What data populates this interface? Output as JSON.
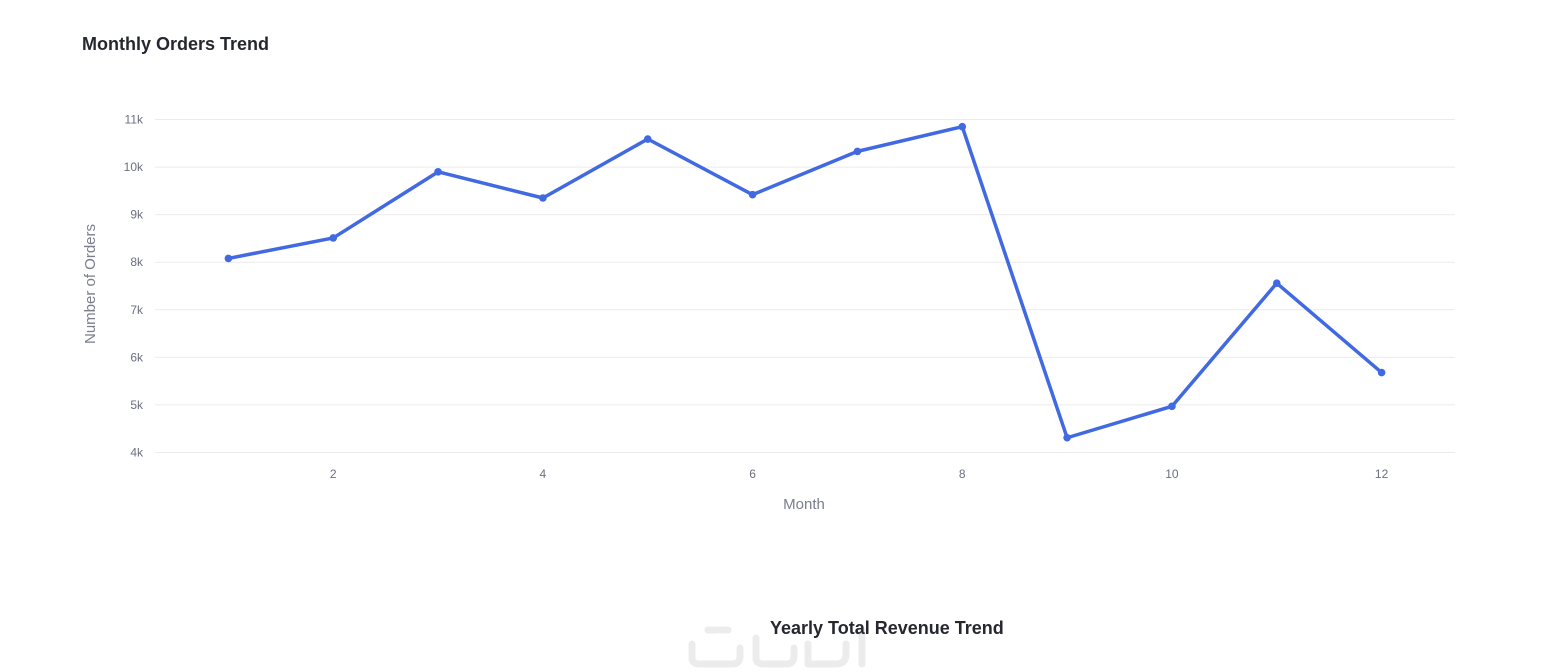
{
  "chart_data": {
    "type": "line",
    "title": "Monthly Orders Trend",
    "xlabel": "Month",
    "ylabel": "Number of Orders",
    "x": [
      1,
      2,
      3,
      4,
      5,
      6,
      7,
      8,
      9,
      10,
      11,
      12
    ],
    "series": [
      {
        "values": [
          8080,
          8510,
          9900,
          9350,
          10590,
          9420,
          10330,
          10850,
          4310,
          4970,
          7560,
          5680
        ],
        "color": "#4169e1"
      }
    ],
    "xlim": [
      0.3,
      12.7
    ],
    "ylim": [
      3800,
      11200
    ],
    "x_ticks": [
      2,
      4,
      6,
      8,
      10,
      12
    ],
    "x_tick_labels": [
      "2",
      "4",
      "6",
      "8",
      "10",
      "12"
    ],
    "y_ticks": [
      4000,
      5000,
      6000,
      7000,
      8000,
      9000,
      10000,
      11000
    ],
    "y_tick_labels": [
      "4k",
      "5k",
      "6k",
      "7k",
      "8k",
      "9k",
      "10k",
      "11k"
    ],
    "grid": true,
    "legend": "none"
  },
  "next_chart": {
    "title": "Yearly Total Revenue Trend"
  },
  "watermark_icon": "khamsat-watermark-icon"
}
